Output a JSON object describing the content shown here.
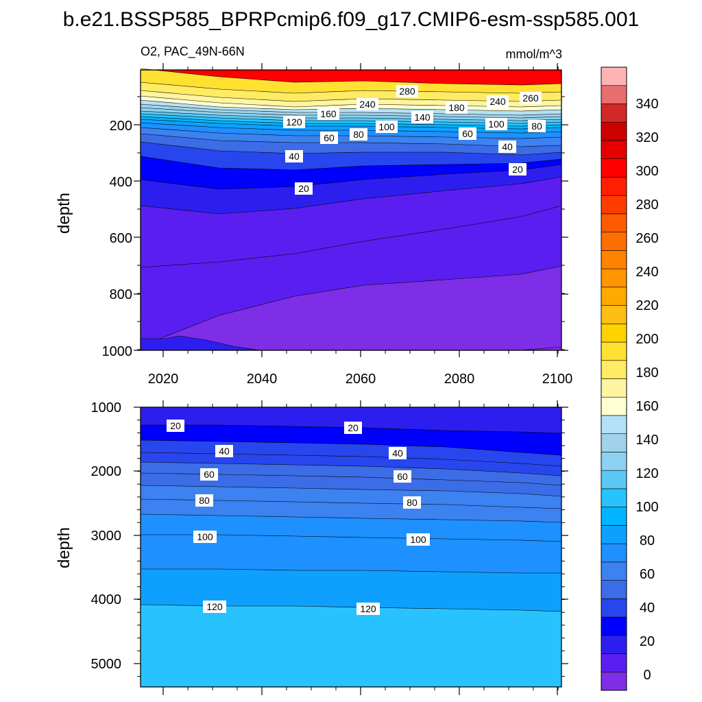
{
  "colors": {
    "levels_fill": [
      "#7d2ee6",
      "#5a1ef0",
      "#2d1ef0",
      "#0000ff",
      "#2846ee",
      "#3c6ce6",
      "#3c82f0",
      "#1e90ff",
      "#0fa0ff",
      "#00b4ff",
      "#28c3ff",
      "#5ac8f5",
      "#8cd2f0",
      "#a0d2eb",
      "#b4e1f5",
      "#ffffd2",
      "#fff5a0",
      "#ffeb64",
      "#ffe132",
      "#ffd200",
      "#ffbe14",
      "#ffaa00",
      "#ff9600",
      "#ff8200",
      "#ff6e00",
      "#ff5a00",
      "#ff3c00",
      "#ff1e00",
      "#ff0000",
      "#e60000",
      "#cd0000",
      "#d22828",
      "#e66e6e",
      "#ffb4b4"
    ]
  },
  "chart_data": {
    "type": "contour",
    "title": "b.e21.BSSP585_BPRPcmip6.f09_g17.CMIP6-esm-ssp585.001",
    "variable_label": "O2, PAC_49N-66N",
    "units_label": "mmol/m^3",
    "ylabel": "depth",
    "colorbar": {
      "tick_labels": [
        "0",
        "20",
        "40",
        "60",
        "80",
        "100",
        "120",
        "140",
        "160",
        "180",
        "200",
        "220",
        "240",
        "260",
        "280",
        "300",
        "320",
        "340"
      ]
    },
    "panels": [
      {
        "name": "upper",
        "xlim": [
          2015,
          2101
        ],
        "ylim": [
          1000,
          0
        ],
        "x_tick_labels": [
          "2020",
          "2040",
          "2060",
          "2080",
          "2100"
        ],
        "y_tick_labels": [
          "200",
          "400",
          "600",
          "800",
          "1000"
        ],
        "contour_labels": [
          "280",
          "260",
          "240",
          "240",
          "180",
          "160",
          "140",
          "120",
          "100",
          "100",
          "80",
          "80",
          "60",
          "60",
          "40",
          "40",
          "20",
          "20"
        ]
      },
      {
        "name": "lower",
        "xlim": [
          2015,
          2101
        ],
        "ylim": [
          5400,
          1000
        ],
        "y_tick_labels": [
          "1000",
          "2000",
          "3000",
          "4000",
          "5000"
        ],
        "contour_labels": [
          "20",
          "20",
          "40",
          "40",
          "60",
          "60",
          "80",
          "80",
          "100",
          "100",
          "120",
          "120"
        ]
      }
    ]
  }
}
